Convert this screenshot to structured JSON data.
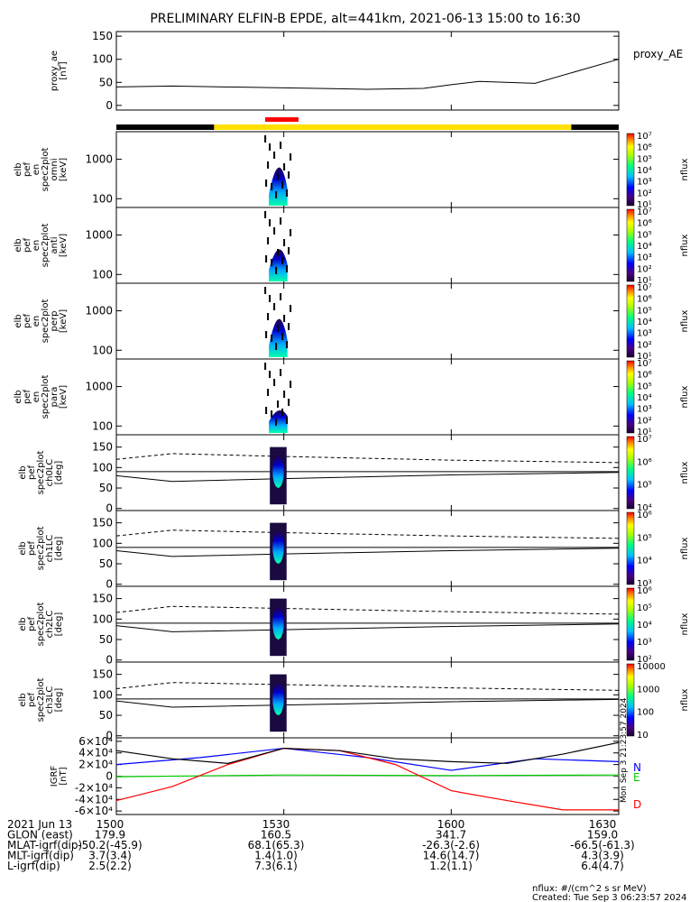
{
  "title": "PRELIMINARY ELFIN-B EPDE, alt=441km, 2021-06-13 15:00 to 16:30",
  "panels": [
    {
      "key": "ae",
      "ylabel": [
        "proxy_ae",
        "[nT]"
      ],
      "yticks": [
        "0",
        "50",
        "100",
        "150"
      ],
      "legend": "proxy_AE"
    },
    {
      "key": "omni",
      "ylabel": [
        "elb",
        "pef",
        "en",
        "spec2plot",
        "omni",
        "[keV]"
      ],
      "yticks": [
        "100",
        "1000"
      ],
      "cb_ticks": [
        "10¹",
        "10²",
        "10³",
        "10⁴",
        "10⁵",
        "10⁶",
        "10⁷"
      ],
      "cb_label": "nflux"
    },
    {
      "key": "anti",
      "ylabel": [
        "elb",
        "pef",
        "en",
        "spec2plot",
        "anti",
        "[keV]"
      ],
      "yticks": [
        "100",
        "1000"
      ],
      "cb_ticks": [
        "10¹",
        "10²",
        "10³",
        "10⁴",
        "10⁵",
        "10⁶",
        "10⁷"
      ],
      "cb_label": "nflux"
    },
    {
      "key": "perp",
      "ylabel": [
        "elb",
        "pef",
        "en",
        "spec2plot",
        "perp",
        "[keV]"
      ],
      "yticks": [
        "100",
        "1000"
      ],
      "cb_ticks": [
        "10¹",
        "10²",
        "10³",
        "10⁴",
        "10⁵",
        "10⁶",
        "10⁷"
      ],
      "cb_label": "nflux"
    },
    {
      "key": "para",
      "ylabel": [
        "elb",
        "pef",
        "en",
        "spec2plot",
        "para",
        "[keV]"
      ],
      "yticks": [
        "100",
        "1000"
      ],
      "cb_ticks": [
        "10¹",
        "10²",
        "10³",
        "10⁴",
        "10⁵",
        "10⁶",
        "10⁷"
      ],
      "cb_label": "nflux"
    },
    {
      "key": "ch0",
      "ylabel": [
        "elb",
        "pef",
        "spec2plot",
        "ch0LC",
        "[deg]"
      ],
      "yticks": [
        "0",
        "50",
        "100",
        "150"
      ],
      "cb_ticks": [
        "10⁴",
        "10⁵",
        "10⁶",
        "10⁷"
      ],
      "cb_label": "nflux"
    },
    {
      "key": "ch1",
      "ylabel": [
        "elb",
        "pef",
        "spec2plot",
        "ch1LC",
        "[deg]"
      ],
      "yticks": [
        "0",
        "50",
        "100",
        "150"
      ],
      "cb_ticks": [
        "10³",
        "10⁴",
        "10⁵",
        "10⁶"
      ],
      "cb_label": "nflux"
    },
    {
      "key": "ch2",
      "ylabel": [
        "elb",
        "pef",
        "spec2plot",
        "ch2LC",
        "[deg]"
      ],
      "yticks": [
        "0",
        "50",
        "100",
        "150"
      ],
      "cb_ticks": [
        "10²",
        "10³",
        "10⁴",
        "10⁵",
        "10⁶"
      ],
      "cb_label": "nflux"
    },
    {
      "key": "ch3",
      "ylabel": [
        "elb",
        "pef",
        "spec2plot",
        "ch3LC",
        "[deg]"
      ],
      "yticks": [
        "0",
        "50",
        "100",
        "150"
      ],
      "cb_ticks": [
        "10",
        "100",
        "1000",
        "10000"
      ],
      "cb_label": "nflux"
    },
    {
      "key": "igrf",
      "ylabel": [
        "IGRF",
        "[nT]"
      ],
      "yticks": [
        "-6×10⁴",
        "-4×10⁴",
        "-2×10⁴",
        "0",
        "2×10⁴",
        "4×10⁴",
        "6×10⁴"
      ],
      "legend_N": "N",
      "legend_E": "E",
      "legend_D": "D"
    }
  ],
  "side_stamp": "Mon Sep  3 21:23:57 2024",
  "footer": {
    "rows": [
      [
        "2021 Jun 13",
        "1500",
        "1530",
        "1600",
        "1630"
      ],
      [
        "GLON (east)",
        "179.9",
        "160.5",
        "341.7",
        "159.0"
      ],
      [
        "MLAT-igrf(dip)",
        "-50.2(-45.9)",
        "68.1(65.3)",
        "-26.3(-2.6)",
        "-66.5(-61.3)"
      ],
      [
        "MLT-igrf(dip)",
        "3.7(3.4)",
        "1.4(1.0)",
        "14.6(14.7)",
        "4.3(3.9)"
      ],
      [
        "L-igrf(dip)",
        "2.5(2.2)",
        "7.3(6.1)",
        "1.2(1.1)",
        "6.4(4.7)"
      ]
    ],
    "nflux_note": "nflux: #/(cm^2 s sr MeV)",
    "created": "Created: Tue Sep  3 06:23:57 2024"
  },
  "chart_data": [
    {
      "type": "line",
      "name": "proxy_AE",
      "x_minutes": [
        0,
        10,
        30,
        45,
        55,
        60,
        65,
        75,
        90
      ],
      "y": [
        40,
        42,
        38,
        35,
        37,
        45,
        52,
        48,
        100
      ],
      "ylim": [
        0,
        150
      ]
    },
    {
      "type": "heatmap",
      "name": "omni spectrogram",
      "x_minutes_range": [
        27,
        31
      ],
      "ylim_keV": [
        60,
        5000
      ],
      "scale": "log"
    },
    {
      "type": "heatmap",
      "name": "anti spectrogram",
      "x_minutes_range": [
        27,
        31
      ],
      "ylim_keV": [
        60,
        5000
      ],
      "scale": "log"
    },
    {
      "type": "heatmap",
      "name": "perp spectrogram",
      "x_minutes_range": [
        27,
        31
      ],
      "ylim_keV": [
        60,
        5000
      ],
      "scale": "log"
    },
    {
      "type": "heatmap",
      "name": "para spectrogram",
      "x_minutes_range": [
        27,
        31
      ],
      "ylim_keV": [
        60,
        5000
      ],
      "scale": "log"
    },
    {
      "type": "line",
      "name": "ch0LC loss cone",
      "x_minutes": [
        0,
        10,
        30,
        60,
        90
      ],
      "y": [
        80,
        66,
        73,
        82,
        88
      ],
      "ylim": [
        0,
        180
      ]
    },
    {
      "type": "line",
      "name": "ch1LC",
      "x_minutes": [
        0,
        10,
        30,
        60,
        90
      ],
      "y": [
        82,
        68,
        74,
        82,
        88
      ],
      "ylim": [
        0,
        180
      ]
    },
    {
      "type": "line",
      "name": "ch2LC",
      "x_minutes": [
        0,
        10,
        30,
        60,
        90
      ],
      "y": [
        84,
        69,
        74,
        82,
        88
      ],
      "ylim": [
        0,
        180
      ]
    },
    {
      "type": "line",
      "name": "ch3LC",
      "x_minutes": [
        0,
        10,
        30,
        60,
        90
      ],
      "y": [
        85,
        70,
        75,
        83,
        89
      ],
      "ylim": [
        0,
        180
      ]
    },
    {
      "type": "line",
      "name": "IGRF",
      "series": [
        {
          "name": "N",
          "color": "#0000ff",
          "x": [
            0,
            15,
            30,
            45,
            60,
            75,
            90
          ],
          "y": [
            20000,
            32000,
            48000,
            32000,
            10000,
            30000,
            25000
          ]
        },
        {
          "name": "E",
          "color": "#00cc00",
          "x": [
            0,
            30,
            60,
            90
          ],
          "y": [
            -1000,
            2000,
            1000,
            2000
          ]
        },
        {
          "name": "D",
          "color": "#ff0000",
          "x": [
            0,
            10,
            20,
            30,
            40,
            50,
            60,
            70,
            80,
            90
          ],
          "y": [
            -42000,
            -18000,
            20000,
            48000,
            44000,
            20000,
            -25000,
            -42000,
            -58000,
            -58000
          ]
        },
        {
          "name": "total",
          "color": "#000000",
          "x": [
            0,
            10,
            20,
            30,
            40,
            50,
            60,
            70,
            80,
            90
          ],
          "y": [
            44000,
            30000,
            22000,
            48000,
            44000,
            30000,
            25000,
            22000,
            38000,
            58000
          ]
        }
      ],
      "ylim": [
        -60000,
        60000
      ]
    }
  ],
  "colors": {
    "ok_band": "#ffe000",
    "black_band": "#000000",
    "red_mark": "#ff0000"
  }
}
